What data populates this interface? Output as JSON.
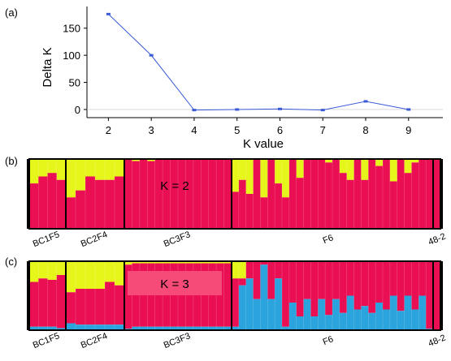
{
  "panels": {
    "a": "(a)",
    "b": "(b)",
    "c": "(c)"
  },
  "colors": {
    "red": "#ea0f53",
    "yellow": "#e6f51a",
    "blue": "#2ba3dc",
    "line": "#3b5bd6",
    "k3_label_box": "#f64a79"
  },
  "chart_data": [
    {
      "type": "line",
      "panel": "(a)",
      "xlabel": "K value",
      "ylabel": "Delta K",
      "x": [
        2,
        3,
        4,
        5,
        6,
        7,
        8,
        9
      ],
      "y": [
        176,
        100,
        -1,
        0,
        1,
        -1,
        15,
        0
      ],
      "xlim": [
        1.5,
        9.8
      ],
      "ylim": [
        -15,
        190
      ],
      "yticks": [
        0,
        50,
        100,
        150
      ],
      "xticks": [
        2,
        3,
        4,
        5,
        6,
        7,
        8,
        9
      ],
      "grid": false,
      "zero_line": true
    },
    {
      "type": "bar",
      "panel": "(b)",
      "stacked": true,
      "annotation": "K = 2",
      "populations": [
        "BC1F5",
        "BC2F4",
        "BC3F3",
        "F6",
        "48-2"
      ],
      "series": [
        {
          "color": "yellow",
          "groups": [
            [
              0.35,
              0.25,
              0.2,
              0.3
            ],
            [
              0.55,
              0.45,
              0.25,
              0.3,
              0.3,
              0.25
            ],
            [
              0,
              0.03,
              0,
              0.03,
              0,
              0,
              0,
              0,
              0,
              0,
              0,
              0,
              0,
              0
            ],
            [
              0.47,
              0.3,
              0.5,
              0,
              0.55,
              0,
              0.35,
              0.55,
              0,
              0.27,
              0,
              0,
              0,
              0.05,
              0,
              0.2,
              0.3,
              0,
              0.3,
              0,
              0.1,
              0,
              0.32,
              0,
              0.2,
              0.05,
              0,
              0
            ],
            [
              0
            ]
          ]
        },
        {
          "color": "red",
          "groups": [
            [
              0.65,
              0.75,
              0.8,
              0.7
            ],
            [
              0.45,
              0.55,
              0.75,
              0.7,
              0.7,
              0.75
            ],
            [
              1,
              0.97,
              1,
              0.97,
              1,
              1,
              1,
              1,
              1,
              1,
              1,
              1,
              1,
              1
            ],
            [
              0.53,
              0.7,
              0.5,
              1,
              0.45,
              1,
              0.65,
              0.45,
              1,
              0.73,
              1,
              1,
              1,
              0.95,
              1,
              0.8,
              0.7,
              1,
              0.7,
              1,
              0.9,
              1,
              0.68,
              1,
              0.8,
              0.95,
              1,
              1
            ],
            [
              1
            ]
          ]
        }
      ]
    },
    {
      "type": "bar",
      "panel": "(c)",
      "stacked": true,
      "annotation": "K = 3",
      "populations": [
        "BC1F5",
        "BC2F4",
        "BC3F3",
        "F6",
        "48-2"
      ],
      "series": [
        {
          "color": "yellow",
          "groups": [
            [
              0.3,
              0.25,
              0.27,
              0.2
            ],
            [
              0.45,
              0.4,
              0.4,
              0.4,
              0.3,
              0.35
            ],
            [
              0.05,
              0.03,
              0.03,
              0.03,
              0.03,
              0.03,
              0.03,
              0.03,
              0.03,
              0.03,
              0.03,
              0.03,
              0.03,
              0.03
            ],
            [
              0.25,
              0.25,
              0,
              0,
              0,
              0,
              0,
              0,
              0,
              0,
              0,
              0,
              0,
              0,
              0,
              0,
              0,
              0,
              0,
              0,
              0,
              0,
              0,
              0,
              0,
              0,
              0,
              0
            ],
            [
              0
            ]
          ]
        },
        {
          "color": "red",
          "groups": [
            [
              0.65,
              0.7,
              0.68,
              0.77
            ],
            [
              0.45,
              0.52,
              0.52,
              0.52,
              0.62,
              0.57
            ],
            [
              0.93,
              0.92,
              0.92,
              0.92,
              0.92,
              0.92,
              0.92,
              0.92,
              0.92,
              0.92,
              0.92,
              0.92,
              0.92,
              0.92
            ],
            [
              0.7,
              0.1,
              0.25,
              0.55,
              0.05,
              0.55,
              0.25,
              0.95,
              0.6,
              0.8,
              0.55,
              0.8,
              0.55,
              0.78,
              0.55,
              0.75,
              0.5,
              0.7,
              0.65,
              0.75,
              0.6,
              0.7,
              0.5,
              0.72,
              0.5,
              0.7,
              0.5,
              0.98
            ],
            [
              1
            ]
          ]
        },
        {
          "color": "blue",
          "groups": [
            [
              0.05,
              0.05,
              0.05,
              0.03
            ],
            [
              0.1,
              0.08,
              0.08,
              0.08,
              0.08,
              0.08
            ],
            [
              0.02,
              0.05,
              0.05,
              0.05,
              0.05,
              0.05,
              0.05,
              0.05,
              0.05,
              0.05,
              0.05,
              0.05,
              0.05,
              0.05
            ],
            [
              0.05,
              0.65,
              0.75,
              0.45,
              0.95,
              0.45,
              0.75,
              0.05,
              0.4,
              0.2,
              0.45,
              0.2,
              0.45,
              0.22,
              0.45,
              0.25,
              0.5,
              0.3,
              0.35,
              0.25,
              0.4,
              0.3,
              0.5,
              0.28,
              0.5,
              0.3,
              0.5,
              0.02
            ],
            [
              0
            ]
          ]
        }
      ]
    }
  ]
}
